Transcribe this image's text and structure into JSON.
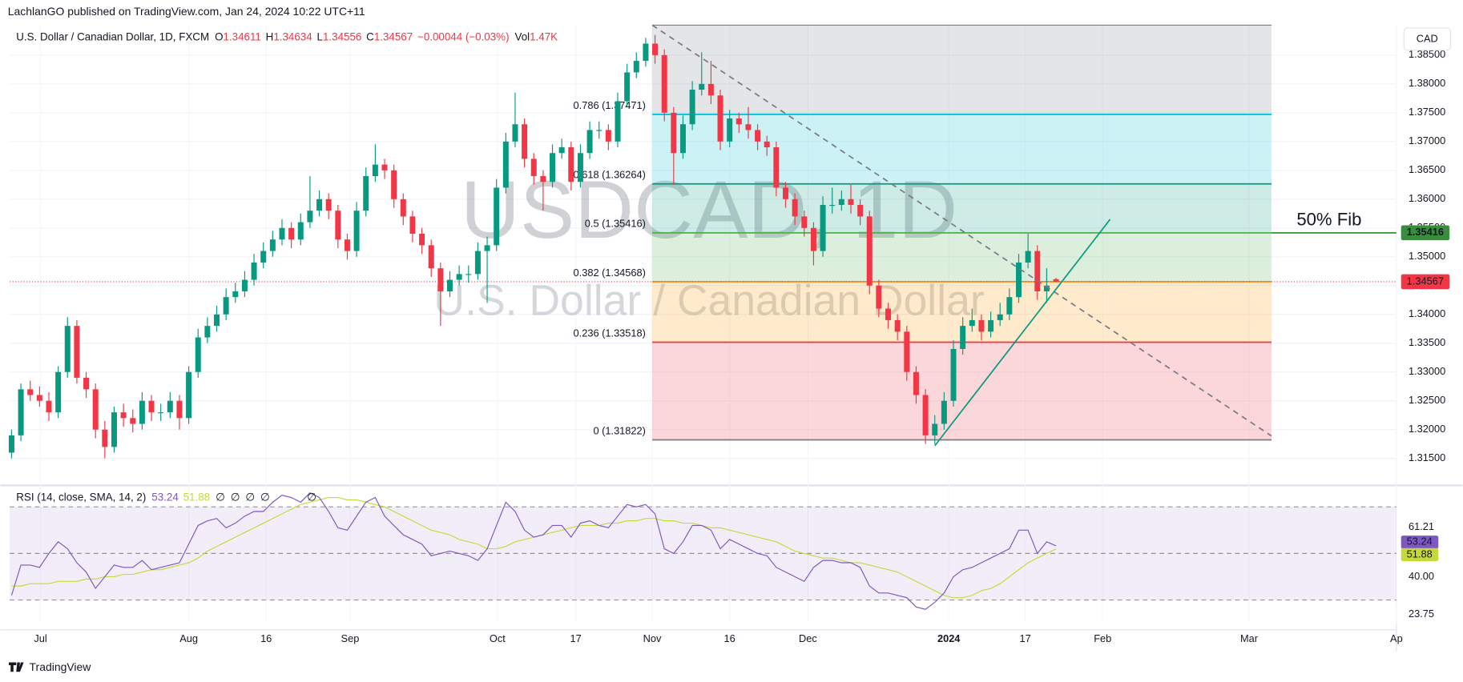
{
  "header": {
    "publisher": "LachlanGO published on TradingView.com, Jan 24, 2024 10:22 UTC+11",
    "currency": "CAD",
    "footer": "TradingView"
  },
  "chart_data": [
    {
      "type": "candlestick",
      "title": "U.S. Dollar / Canadian Dollar, 1D, FXCM",
      "watermark": "USDCAD, 1D",
      "watermark_sub": "U.S. Dollar / Canadian Dollar",
      "legend_labels": [
        "O",
        "H",
        "L",
        "C"
      ],
      "change": "−0.00044 (−0.03%)",
      "volume_label": "Vol",
      "volume": "1.47K",
      "up_color": "#089981",
      "down_color": "#f23645",
      "last_price_color": "#f23645",
      "candles": [
        [
          1.316,
          1.32,
          1.315,
          1.319
        ],
        [
          1.319,
          1.328,
          1.318,
          1.327
        ],
        [
          1.327,
          1.3285,
          1.325,
          1.326
        ],
        [
          1.326,
          1.3275,
          1.324,
          1.325
        ],
        [
          1.325,
          1.3265,
          1.3215,
          1.323
        ],
        [
          1.323,
          1.331,
          1.322,
          1.33
        ],
        [
          1.33,
          1.3395,
          1.329,
          1.338
        ],
        [
          1.338,
          1.339,
          1.328,
          1.329
        ],
        [
          1.329,
          1.33,
          1.3255,
          1.327
        ],
        [
          1.327,
          1.328,
          1.3185,
          1.32
        ],
        [
          1.32,
          1.3215,
          1.315,
          1.317
        ],
        [
          1.317,
          1.324,
          1.316,
          1.323
        ],
        [
          1.323,
          1.3245,
          1.3205,
          1.322
        ],
        [
          1.322,
          1.3235,
          1.3195,
          1.321
        ],
        [
          1.321,
          1.3265,
          1.32,
          1.325
        ],
        [
          1.325,
          1.326,
          1.3215,
          1.323
        ],
        [
          1.323,
          1.3245,
          1.3215,
          1.323
        ],
        [
          1.323,
          1.3265,
          1.322,
          1.325
        ],
        [
          1.325,
          1.326,
          1.32,
          1.322
        ],
        [
          1.322,
          1.331,
          1.321,
          1.33
        ],
        [
          1.33,
          1.3375,
          1.329,
          1.336
        ],
        [
          1.336,
          1.3395,
          1.335,
          1.338
        ],
        [
          1.338,
          1.3415,
          1.337,
          1.34
        ],
        [
          1.34,
          1.3445,
          1.339,
          1.343
        ],
        [
          1.343,
          1.3455,
          1.342,
          1.344
        ],
        [
          1.344,
          1.3475,
          1.343,
          1.346
        ],
        [
          1.346,
          1.3505,
          1.345,
          1.349
        ],
        [
          1.349,
          1.3525,
          1.348,
          1.351
        ],
        [
          1.351,
          1.3545,
          1.35,
          1.353
        ],
        [
          1.353,
          1.3565,
          1.352,
          1.355
        ],
        [
          1.355,
          1.356,
          1.3515,
          1.353
        ],
        [
          1.353,
          1.3575,
          1.352,
          1.356
        ],
        [
          1.356,
          1.364,
          1.355,
          1.358
        ],
        [
          1.358,
          1.3615,
          1.357,
          1.36
        ],
        [
          1.36,
          1.361,
          1.3565,
          1.358
        ],
        [
          1.358,
          1.359,
          1.3515,
          1.353
        ],
        [
          1.353,
          1.354,
          1.3495,
          1.351
        ],
        [
          1.351,
          1.3595,
          1.35,
          1.358
        ],
        [
          1.358,
          1.3655,
          1.357,
          1.364
        ],
        [
          1.364,
          1.3695,
          1.363,
          1.366
        ],
        [
          1.366,
          1.367,
          1.3635,
          1.365
        ],
        [
          1.365,
          1.366,
          1.3585,
          1.36
        ],
        [
          1.36,
          1.361,
          1.3555,
          1.357
        ],
        [
          1.357,
          1.358,
          1.3525,
          1.354
        ],
        [
          1.354,
          1.355,
          1.3505,
          1.352
        ],
        [
          1.352,
          1.353,
          1.3465,
          1.348
        ],
        [
          1.348,
          1.349,
          1.338,
          1.344
        ],
        [
          1.344,
          1.3475,
          1.343,
          1.346
        ],
        [
          1.346,
          1.3485,
          1.345,
          1.347
        ],
        [
          1.347,
          1.3485,
          1.3455,
          1.347
        ],
        [
          1.347,
          1.3525,
          1.346,
          1.351
        ],
        [
          1.351,
          1.3535,
          1.342,
          1.352
        ],
        [
          1.352,
          1.3635,
          1.351,
          1.362
        ],
        [
          1.362,
          1.3715,
          1.361,
          1.37
        ],
        [
          1.37,
          1.3785,
          1.369,
          1.373
        ],
        [
          1.373,
          1.374,
          1.3655,
          1.367
        ],
        [
          1.367,
          1.368,
          1.3625,
          1.364
        ],
        [
          1.364,
          1.365,
          1.358,
          1.363
        ],
        [
          1.363,
          1.3695,
          1.362,
          1.368
        ],
        [
          1.368,
          1.3705,
          1.367,
          1.369
        ],
        [
          1.369,
          1.37,
          1.3615,
          1.363
        ],
        [
          1.363,
          1.3695,
          1.362,
          1.368
        ],
        [
          1.368,
          1.3735,
          1.367,
          1.372
        ],
        [
          1.372,
          1.3735,
          1.3705,
          1.372
        ],
        [
          1.372,
          1.373,
          1.3685,
          1.37
        ],
        [
          1.37,
          1.3785,
          1.369,
          1.377
        ],
        [
          1.377,
          1.3835,
          1.376,
          1.382
        ],
        [
          1.382,
          1.3855,
          1.381,
          1.384
        ],
        [
          1.384,
          1.388,
          1.383,
          1.387
        ],
        [
          1.387,
          1.3885,
          1.3835,
          1.385
        ],
        [
          1.385,
          1.386,
          1.3735,
          1.375
        ],
        [
          1.375,
          1.376,
          1.3625,
          1.368
        ],
        [
          1.368,
          1.3745,
          1.367,
          1.373
        ],
        [
          1.373,
          1.3805,
          1.372,
          1.379
        ],
        [
          1.379,
          1.3855,
          1.378,
          1.38
        ],
        [
          1.38,
          1.384,
          1.3765,
          1.378
        ],
        [
          1.378,
          1.379,
          1.3685,
          1.37
        ],
        [
          1.37,
          1.3755,
          1.369,
          1.374
        ],
        [
          1.374,
          1.375,
          1.3715,
          1.373
        ],
        [
          1.373,
          1.376,
          1.3705,
          1.372
        ],
        [
          1.372,
          1.373,
          1.3685,
          1.37
        ],
        [
          1.37,
          1.371,
          1.3675,
          1.369
        ],
        [
          1.369,
          1.37,
          1.3605,
          1.362
        ],
        [
          1.362,
          1.363,
          1.3585,
          1.36
        ],
        [
          1.36,
          1.361,
          1.3555,
          1.357
        ],
        [
          1.357,
          1.358,
          1.3535,
          1.355
        ],
        [
          1.355,
          1.356,
          1.3485,
          1.351
        ],
        [
          1.351,
          1.3605,
          1.35,
          1.359
        ],
        [
          1.359,
          1.362,
          1.3575,
          1.359
        ],
        [
          1.359,
          1.3615,
          1.358,
          1.36
        ],
        [
          1.36,
          1.3625,
          1.3575,
          1.359
        ],
        [
          1.359,
          1.36,
          1.3555,
          1.357
        ],
        [
          1.357,
          1.358,
          1.3435,
          1.345
        ],
        [
          1.345,
          1.346,
          1.3395,
          1.341
        ],
        [
          1.341,
          1.342,
          1.3375,
          1.339
        ],
        [
          1.339,
          1.34,
          1.3355,
          1.337
        ],
        [
          1.337,
          1.338,
          1.3285,
          1.33
        ],
        [
          1.33,
          1.331,
          1.3245,
          1.326
        ],
        [
          1.326,
          1.327,
          1.3175,
          1.319
        ],
        [
          1.319,
          1.3225,
          1.3175,
          1.321
        ],
        [
          1.321,
          1.3265,
          1.32,
          1.325
        ],
        [
          1.325,
          1.3355,
          1.324,
          1.334
        ],
        [
          1.334,
          1.3395,
          1.333,
          1.338
        ],
        [
          1.338,
          1.341,
          1.337,
          1.339
        ],
        [
          1.339,
          1.34,
          1.3355,
          1.337
        ],
        [
          1.337,
          1.3405,
          1.336,
          1.339
        ],
        [
          1.339,
          1.342,
          1.338,
          1.34
        ],
        [
          1.34,
          1.3445,
          1.339,
          1.343
        ],
        [
          1.343,
          1.3505,
          1.342,
          1.349
        ],
        [
          1.349,
          1.354,
          1.348,
          1.351
        ],
        [
          1.351,
          1.352,
          1.3425,
          1.344
        ],
        [
          1.344,
          1.348,
          1.342,
          1.345
        ],
        [
          1.34611,
          1.34634,
          1.34556,
          1.34567
        ]
      ],
      "xlim": [
        -0.2,
        148.5
      ],
      "xticks": [
        {
          "value": 3.1,
          "label": "Jul"
        },
        {
          "value": 19,
          "label": "Aug"
        },
        {
          "value": 27.3,
          "label": "16"
        },
        {
          "value": 36.3,
          "label": "Sep"
        },
        {
          "value": 52.1,
          "label": "Oct"
        },
        {
          "value": 60.5,
          "label": "17"
        },
        {
          "value": 68.7,
          "label": "Nov"
        },
        {
          "value": 77,
          "label": "16"
        },
        {
          "value": 85.4,
          "label": "Dec"
        },
        {
          "value": 100.5,
          "label": "2024"
        },
        {
          "value": 108.7,
          "label": "17"
        },
        {
          "value": 117,
          "label": "Feb"
        },
        {
          "value": 132.7,
          "label": "Mar"
        },
        {
          "value": 148.5,
          "label": "Ap"
        }
      ],
      "ylim": [
        1.3108,
        1.3902
      ],
      "yticks": [
        {
          "value": 1.385,
          "label": "1.38500"
        },
        {
          "value": 1.38,
          "label": "1.38000"
        },
        {
          "value": 1.375,
          "label": "1.37500"
        },
        {
          "value": 1.37,
          "label": "1.37000"
        },
        {
          "value": 1.365,
          "label": "1.36500"
        },
        {
          "value": 1.36,
          "label": "1.36000"
        },
        {
          "value": 1.355,
          "label": "1.35500"
        },
        {
          "value": 1.35,
          "label": "1.35000"
        },
        {
          "value": 1.345,
          "label": "1.34500"
        },
        {
          "value": 1.34,
          "label": "1.34000"
        },
        {
          "value": 1.335,
          "label": "1.33500"
        },
        {
          "value": 1.33,
          "label": "1.33000"
        },
        {
          "value": 1.325,
          "label": "1.32500"
        },
        {
          "value": 1.32,
          "label": "1.32000"
        },
        {
          "value": 1.315,
          "label": "1.31500"
        }
      ],
      "grid": true,
      "fib": {
        "start": 68.7,
        "end": 135.1,
        "top": 1.3902,
        "top_color": "#787b86",
        "levels": [
          {
            "label": "0.786 (1.37471)",
            "price": 1.37471,
            "color": "#00bcd4"
          },
          {
            "label": "0.618 (1.36264)",
            "price": 1.36264,
            "color": "#089981"
          },
          {
            "label": "0.5 (1.35416)",
            "price": 1.35416,
            "color": "#4caf50"
          },
          {
            "label": "0.382 (1.34568)",
            "price": 1.34568,
            "color": "#ff9800"
          },
          {
            "label": "0.236 (1.33518)",
            "price": 1.33518,
            "color": "#f23645"
          },
          {
            "label": "0 (1.31822)",
            "price": 1.31822,
            "color": "#787b86"
          }
        ]
      },
      "lines": [
        {
          "points": [
            [
              68.7,
              1.3902
            ],
            [
              135.1,
              1.3189
            ]
          ],
          "color": "#787b86",
          "dashed": true
        },
        {
          "points": [
            [
              99.0,
              1.3172
            ],
            [
              117.8,
              1.3565
            ]
          ],
          "color": "#089981",
          "dashed": false
        }
      ],
      "annotation": {
        "text": "50% Fib",
        "price": 1.35416,
        "color": "#388e3c"
      }
    },
    {
      "type": "line",
      "title": "RSI (14, close, SMA, 14, 2)",
      "placeholders": [
        "∅",
        "∅",
        "∅",
        "∅",
        "∅"
      ],
      "series": [
        {
          "name": "RSI",
          "color": "#7e57c2",
          "values": [
            32,
            45,
            45,
            44,
            50,
            55,
            52,
            46,
            42,
            35,
            40,
            45,
            44,
            44,
            47,
            43,
            44,
            45,
            46,
            54,
            62,
            64,
            65,
            61,
            63,
            66,
            68,
            68,
            72,
            75,
            74,
            72,
            76,
            74,
            68,
            61,
            60,
            66,
            72,
            74,
            66,
            62,
            58,
            56,
            54,
            49,
            50,
            51,
            50,
            49,
            47,
            52,
            62,
            72,
            68,
            60,
            57,
            58,
            62,
            62,
            57,
            63,
            64,
            62,
            61,
            66,
            71,
            70,
            71,
            67,
            52,
            50,
            55,
            62,
            62,
            60,
            52,
            56,
            54,
            52,
            50,
            49,
            44,
            42,
            40,
            38,
            44,
            47,
            47,
            46,
            46,
            44,
            36,
            33,
            33,
            32,
            31,
            27,
            26,
            29,
            33,
            40,
            43,
            44,
            46,
            48,
            50,
            52,
            60,
            60,
            50,
            55,
            53.24
          ]
        },
        {
          "name": "SMA",
          "color": "#c6d93a",
          "values": [
            36,
            36,
            37,
            37,
            37,
            38,
            38,
            38,
            39,
            39,
            40,
            40,
            41,
            41,
            42,
            43,
            43,
            44,
            45,
            46,
            48,
            51,
            53,
            55,
            57,
            59,
            61,
            63,
            65,
            67,
            69,
            71,
            72,
            73,
            74,
            74,
            73,
            73,
            72,
            71,
            70,
            68,
            66,
            64,
            62,
            60,
            59,
            58,
            56,
            55,
            54,
            52,
            52,
            53,
            55,
            56,
            57,
            58,
            59,
            60,
            61,
            62,
            62,
            62,
            63,
            63,
            64,
            64,
            65,
            65,
            64,
            64,
            63,
            63,
            62,
            61,
            61,
            60,
            59,
            58,
            57,
            56,
            55,
            53,
            51,
            50,
            49,
            48,
            48,
            47,
            46,
            46,
            45,
            44,
            43,
            42,
            40,
            38,
            36,
            34,
            32,
            31,
            31,
            32,
            34,
            35,
            37,
            40,
            43,
            46,
            48,
            50,
            51.88
          ]
        }
      ],
      "ylim": [
        20.4,
        76.8
      ],
      "yticks": [
        61.21,
        {
          "value": 40,
          "label": "40.00"
        },
        23.75
      ],
      "bands": [
        30,
        50,
        70
      ],
      "band_fill": "#7e57c2"
    }
  ]
}
